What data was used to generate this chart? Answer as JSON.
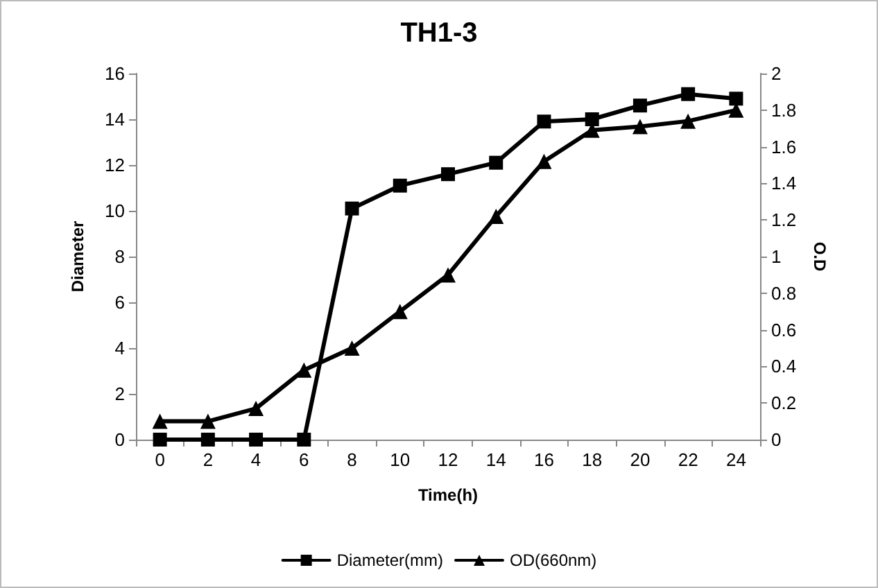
{
  "chart_data": {
    "type": "line",
    "title": "TH1-3",
    "xlabel": "Time(h)",
    "ylabel": "Diameter",
    "y2label": "O.D",
    "categories": [
      "0",
      "2",
      "4",
      "6",
      "8",
      "10",
      "12",
      "14",
      "16",
      "18",
      "20",
      "22",
      "24"
    ],
    "series": [
      {
        "name": "Diameter(mm)",
        "color": "#000000",
        "marker": "square",
        "values": [
          0,
          0,
          0,
          0,
          10.1,
          11.1,
          11.6,
          12.1,
          13.9,
          14.0,
          14.6,
          15.1,
          14.9
        ]
      },
      {
        "name": "OD(660nm)",
        "color": "#000000",
        "marker": "triangle",
        "axis": "y2",
        "values": [
          0.1,
          0.1,
          0.17,
          0.38,
          0.5,
          0.7,
          0.9,
          1.22,
          1.52,
          1.69,
          1.71,
          1.74,
          1.8
        ]
      }
    ],
    "ylim": [
      0,
      16
    ],
    "yticks": [
      0,
      2,
      4,
      6,
      8,
      10,
      12,
      14,
      16
    ],
    "y2lim": [
      0,
      2
    ],
    "y2ticks": [
      0,
      0.2,
      0.4,
      0.6,
      0.8,
      1,
      1.2,
      1.4,
      1.6,
      1.8,
      2
    ],
    "grid": false,
    "legend": "bottom",
    "line_style": "solid"
  }
}
